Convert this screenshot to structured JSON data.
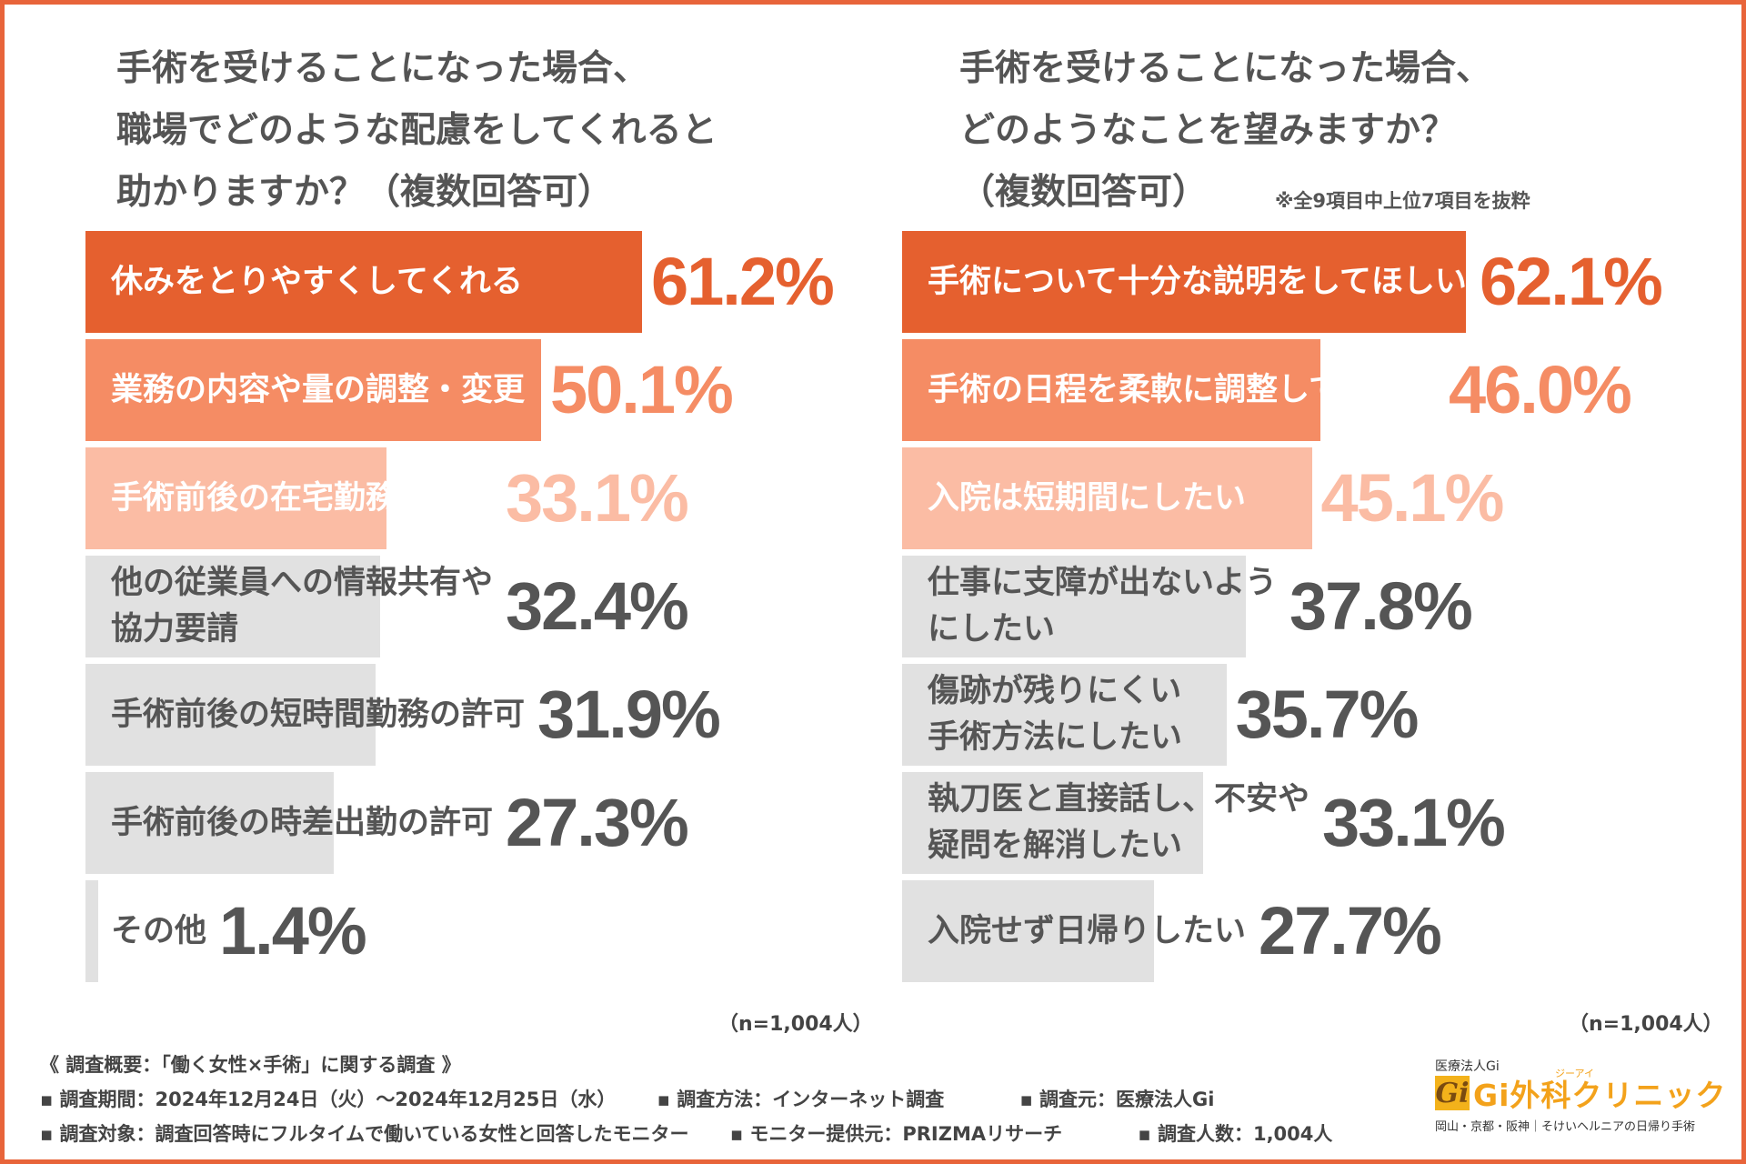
{
  "left": {
    "title_lines": [
      "手術を受けることになった場合、",
      "職場でどのような配慮をしてくれると",
      "助かりますか？（複数回答可）"
    ],
    "n_label": "（n=1,004人）"
  },
  "right": {
    "title_lines": [
      "手術を受けることになった場合、",
      "どのようなことを望みますか？",
      "（複数回答可）"
    ],
    "note": "※全9項目中上位7項目を抜粋",
    "n_label": "（n=1,004人）"
  },
  "chart_data": [
    {
      "type": "bar",
      "orientation": "horizontal",
      "title": "手術を受けることになった場合、職場でどのような配慮をしてくれると助かりますか？（複数回答可）",
      "categories": [
        "休みをとりやすくしてくれる",
        "業務の内容や量の調整・変更",
        "手術前後の在宅勤務の許可",
        "他の従業員への情報共有や協力要請",
        "手術前後の短時間勤務の許可",
        "手術前後の時差出勤の許可",
        "その他"
      ],
      "label_lines": [
        [
          "休みをとりやすくしてくれる"
        ],
        [
          "業務の内容や量の調整・変更"
        ],
        [
          "手術前後の在宅勤務の許可"
        ],
        [
          "他の従業員への情報共有や",
          "協力要請"
        ],
        [
          "手術前後の短時間勤務の許可"
        ],
        [
          "手術前後の時差出勤の許可"
        ],
        [
          "その他"
        ]
      ],
      "values": [
        61.2,
        50.1,
        33.1,
        32.4,
        31.9,
        27.3,
        1.4
      ],
      "value_labels": [
        "61.2%",
        "50.1%",
        "33.1%",
        "32.4%",
        "31.9%",
        "27.3%",
        "1.4%"
      ],
      "unit": "%",
      "xlim": [
        0,
        100
      ],
      "bar_colors": [
        "#e5602f",
        "#f58c64",
        "#fbbca4",
        "#e1e1e1",
        "#e1e1e1",
        "#e1e1e1",
        "#e1e1e1"
      ],
      "value_colors": [
        "#e5602f",
        "#f58c64",
        "#fbbca4",
        "#555555",
        "#555555",
        "#555555",
        "#555555"
      ],
      "label_colors": [
        "#ffffff",
        "#ffffff",
        "#ffffff",
        "#555555",
        "#555555",
        "#555555",
        "#555555"
      ]
    },
    {
      "type": "bar",
      "orientation": "horizontal",
      "title": "手術を受けることになった場合、どのようなことを望みますか？（複数回答可）",
      "categories": [
        "手術について十分な説明をしてほしい",
        "手術の日程を柔軟に調整してほしい",
        "入院は短期間にしたい",
        "仕事に支障が出ないようにしたい",
        "傷跡が残りにくい手術方法にしたい",
        "執刀医と直接話し、不安や疑問を解消したい",
        "入院せず日帰りしたい"
      ],
      "label_lines": [
        [
          "手術について十分な説明をしてほしい"
        ],
        [
          "手術の日程を柔軟に調整してほしい"
        ],
        [
          "入院は短期間にしたい"
        ],
        [
          "仕事に支障が出ないよう",
          "にしたい"
        ],
        [
          "傷跡が残りにくい",
          "手術方法にしたい"
        ],
        [
          "執刀医と直接話し、不安や",
          "疑問を解消したい"
        ],
        [
          "入院せず日帰りしたい"
        ]
      ],
      "values": [
        62.1,
        46.0,
        45.1,
        37.8,
        35.7,
        33.1,
        27.7
      ],
      "value_labels": [
        "62.1%",
        "46.0%",
        "45.1%",
        "37.8%",
        "35.7%",
        "33.1%",
        "27.7%"
      ],
      "unit": "%",
      "xlim": [
        0,
        100
      ],
      "bar_colors": [
        "#e5602f",
        "#f58c64",
        "#fbbca4",
        "#e1e1e1",
        "#e1e1e1",
        "#e1e1e1",
        "#e1e1e1"
      ],
      "value_colors": [
        "#e5602f",
        "#f58c64",
        "#fbbca4",
        "#555555",
        "#555555",
        "#555555",
        "#555555"
      ],
      "label_colors": [
        "#ffffff",
        "#ffffff",
        "#ffffff",
        "#555555",
        "#555555",
        "#555555",
        "#555555"
      ]
    }
  ],
  "footer": {
    "overview": "《 調査概要：「働く女性×手術」に関する調査 》",
    "period": "▪ 調査期間：2024年12月24日（火）～2024年12月25日（水）",
    "method": "▪ 調査方法：インターネット調査",
    "source": "▪ 調査元：医療法人Gi",
    "target": "▪ 調査対象：調査回答時にフルタイムで働いている女性と回答したモニター",
    "monitor": "▪ モニター提供元：PRIZMAリサーチ",
    "count": "▪ 調査人数：1,004人"
  },
  "logo": {
    "org": "医療法人Gi",
    "mark": "Gi",
    "name": "Gi外科クリニック",
    "ruby": "ジーアイ",
    "tagline": "岡山・京都・阪神｜そけいヘルニアの日帰り手術"
  }
}
